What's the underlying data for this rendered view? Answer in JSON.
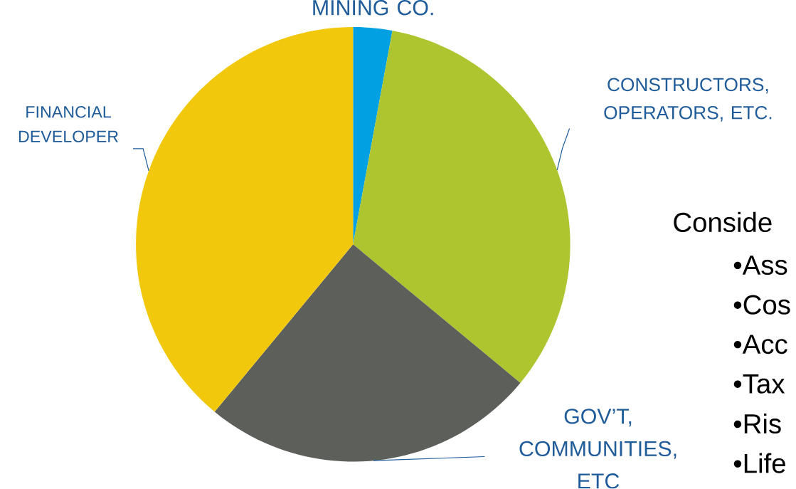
{
  "chart_data": {
    "type": "pie",
    "categories": [
      "MINING CO.",
      "CONSTRUCTORS, OPERATORS, ETC.",
      "GOV’T, COMMUNITIES, ETC",
      "FINANCIAL DEVELOPER"
    ],
    "values": [
      2.9,
      33.1,
      25,
      39
    ],
    "colors": [
      "#00a0e3",
      "#afc52f",
      "#5d5f5b",
      "#f2c80c"
    ],
    "annotations": [
      "Conside",
      "•Ass",
      "•Cos",
      "•Acc",
      "•Tax",
      "•Ris",
      "•Life"
    ]
  }
}
